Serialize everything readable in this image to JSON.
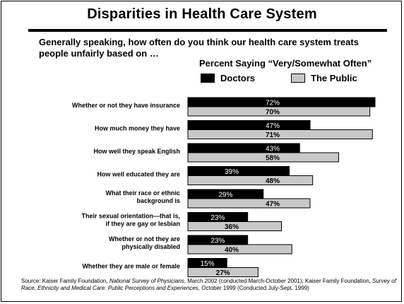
{
  "title": "Disparities in Health Care System",
  "question": "Generally speaking, how often do you think our health care system treats people unfairly based on …",
  "legend": {
    "title": "Percent Saying “Very/Somewhat Often”",
    "items": [
      "Doctors",
      "The Public"
    ]
  },
  "colors": {
    "doctors": "#000000",
    "public": "#c8c8c8"
  },
  "chart_data": {
    "type": "bar",
    "orientation": "horizontal",
    "categories": [
      "Whether or not they have insurance",
      "How much money they have",
      "How well they speak English",
      "How well educated they are",
      "What their race or ethnic background is",
      "Their sexual orientation—that is, if they are gay or lesbian",
      "Whether or not they are physically disabled",
      "Whether they are male or female"
    ],
    "series": [
      {
        "name": "Doctors",
        "values": [
          72,
          47,
          43,
          39,
          29,
          23,
          23,
          15
        ],
        "labels": [
          "72%",
          "47%",
          "43%",
          "39%",
          "29%",
          "23%",
          "23%",
          "15%"
        ]
      },
      {
        "name": "The Public",
        "values": [
          70,
          71,
          58,
          48,
          47,
          36,
          40,
          27
        ],
        "labels": [
          "70%",
          "71%",
          "58%",
          "48%",
          "47%",
          "36%",
          "40%",
          "27%"
        ]
      }
    ],
    "xlim": [
      0,
      72
    ],
    "grid": false,
    "legend_position": "top-right"
  },
  "source": {
    "prefix": "Source: Kaiser Family Foundation, ",
    "pub1": "National Survey of Physicians",
    "mid": ", March 2002 (conducted March-October 2001); Kaiser Family Foundation, ",
    "pub2": "Survey of Race, Ethnicity and Medical Care: Public Perceptions and Experiences",
    "suffix": ", October 1999 (Conducted July-Sept. 1999)"
  }
}
